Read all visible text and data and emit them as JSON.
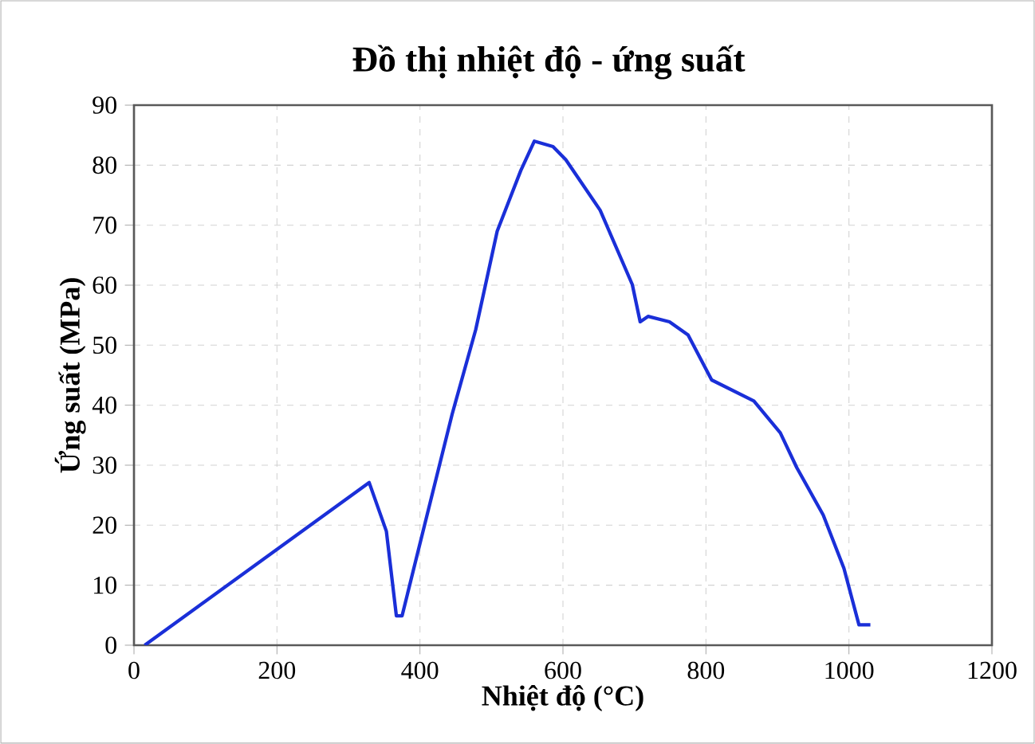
{
  "chart_data": {
    "type": "line",
    "title": "Đồ thị nhiệt độ - ứng suất",
    "xlabel": "Nhiệt độ (°C)",
    "ylabel": "Ứng suất (MPa)",
    "x": [
      15,
      329,
      353,
      367,
      375,
      397,
      445,
      478,
      508,
      541,
      560,
      586,
      604,
      652,
      697,
      708,
      719,
      749,
      775,
      808,
      867,
      904,
      927,
      964,
      993,
      1014,
      1030
    ],
    "series": [
      {
        "color": "#1a2fd8",
        "values": [
          0,
          27.1,
          19,
          4.9,
          4.9,
          15.5,
          38.5,
          52.6,
          69,
          79.1,
          84,
          83.1,
          80.9,
          72.5,
          60.1,
          53.9,
          54.8,
          53.9,
          51.7,
          44.2,
          40.7,
          35.4,
          29.6,
          21.7,
          12.8,
          3.4,
          3.4
        ]
      }
    ],
    "xlim": [
      0,
      1200
    ],
    "ylim": [
      0,
      90
    ],
    "xticks": [
      0,
      200,
      400,
      600,
      800,
      1000,
      1200
    ],
    "yticks": [
      0,
      10,
      20,
      30,
      40,
      50,
      60,
      70,
      80,
      90
    ],
    "grid": true,
    "line_style": "solid"
  }
}
